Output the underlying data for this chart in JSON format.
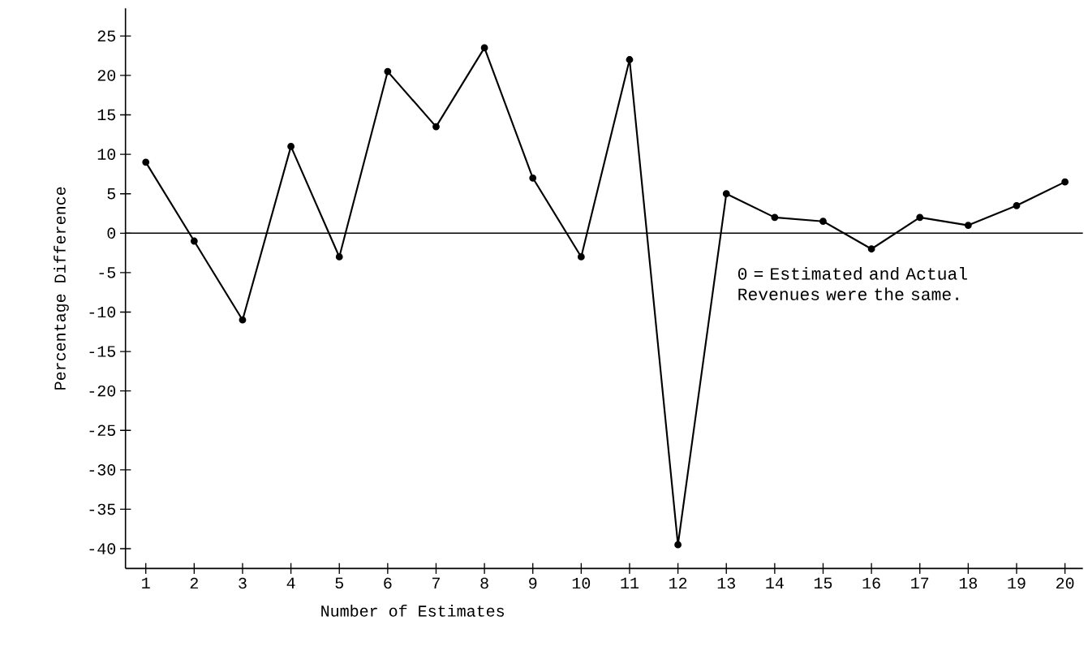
{
  "chart_data": {
    "type": "line",
    "xlabel": "Number of Estimates",
    "ylabel": "Percentage Difference",
    "categories": [
      "1",
      "2",
      "3",
      "4",
      "5",
      "6",
      "7",
      "8",
      "9",
      "10",
      "11",
      "12",
      "13",
      "14",
      "15",
      "16",
      "17",
      "18",
      "19",
      "20"
    ],
    "values": [
      9,
      -1,
      -11,
      11,
      -3,
      20.5,
      13.5,
      23.5,
      7,
      -3,
      22,
      -39.5,
      5,
      2,
      1.5,
      -2,
      2,
      1,
      3.5,
      6.5
    ],
    "color": "#000000",
    "marker": "circle",
    "line_style": "solid",
    "grid": false,
    "ylim": [
      -42.5,
      28.5
    ],
    "yticks": [
      -40,
      -35,
      -30,
      -25,
      -20,
      -15,
      -10,
      -5,
      0,
      5,
      10,
      15,
      20,
      25
    ],
    "ref_lines": [
      {
        "axis": "y",
        "value": 0,
        "color": "#000000"
      }
    ],
    "annotations": [
      "0 = Estimated and Actual Revenues were the same."
    ]
  }
}
